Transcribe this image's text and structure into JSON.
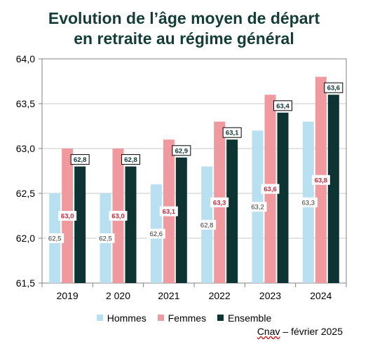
{
  "chart_data": {
    "type": "bar",
    "title_lines": [
      "Evolution de l’âge moyen de départ",
      "en retraite au régime général"
    ],
    "categories": [
      "2019",
      "2 020",
      "2021",
      "2022",
      "2023",
      "2024"
    ],
    "series": [
      {
        "name": "Hommes",
        "color": "#b8e0f0",
        "label_style": "plain",
        "values": [
          62.5,
          62.5,
          62.6,
          62.8,
          63.2,
          63.3
        ],
        "labels": [
          "62,5",
          "62,5",
          "62,6",
          "62,8",
          "63,2",
          "63,3"
        ]
      },
      {
        "name": "Femmes",
        "color": "#f0999f",
        "label_style": "red",
        "values": [
          63.0,
          63.0,
          63.1,
          63.3,
          63.6,
          63.8
        ],
        "labels": [
          "63,0",
          "63,0",
          "63,1",
          "63,3",
          "63,6",
          "63,8"
        ]
      },
      {
        "name": "Ensemble",
        "color": "#0d3432",
        "label_style": "boxed",
        "values": [
          62.8,
          62.8,
          62.9,
          63.1,
          63.4,
          63.6
        ],
        "labels": [
          "62,8",
          "62,8",
          "62,9",
          "63,1",
          "63,4",
          "63,6"
        ]
      }
    ],
    "ylim": [
      61.5,
      64.0
    ],
    "y_ticks": [
      61.5,
      62.0,
      62.5,
      63.0,
      63.5,
      64.0
    ],
    "y_tick_labels": [
      "61,5",
      "62,0",
      "62,5",
      "63,0",
      "63,5",
      "64,0"
    ],
    "grid": true,
    "legend": "bottom-center"
  },
  "source_prefix": "Cnav",
  "source_suffix": " – février 2025"
}
